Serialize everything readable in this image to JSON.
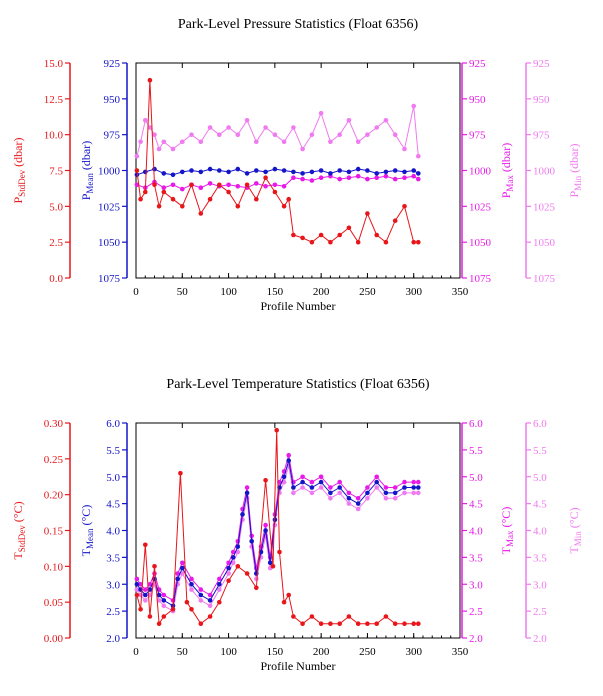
{
  "charts": [
    {
      "title": "Park-Level Pressure Statistics (Float 6356)",
      "xlabel": "Profile Number",
      "x_ticks": [
        "0",
        "50",
        "100",
        "150",
        "200",
        "250",
        "300",
        "350"
      ],
      "axes": {
        "std": {
          "label": "PStdDev (dbar)",
          "label_main": "P",
          "label_sub": "StdDev",
          "label_unit": " (dbar)",
          "ticks": [
            "0.0",
            "2.5",
            "5.0",
            "7.5",
            "10.0",
            "12.5",
            "15.0"
          ],
          "color": "#e8161a"
        },
        "mean": {
          "label": "PMean (dbar)",
          "label_main": "P",
          "label_sub": "Mean",
          "label_unit": " (dbar)",
          "ticks": [
            "925",
            "950",
            "975",
            "1000",
            "1025",
            "1050",
            "1075"
          ],
          "color": "#1414c8"
        },
        "max": {
          "label": "PMax (dbar)",
          "label_main": "P",
          "label_sub": "Max",
          "label_unit": " (dbar)",
          "ticks": [
            "925",
            "950",
            "975",
            "1000",
            "1025",
            "1050",
            "1075"
          ],
          "color": "#e81ae8"
        },
        "min": {
          "label": "PMin (dbar)",
          "label_main": "P",
          "label_sub": "Min",
          "label_unit": " (dbar)",
          "ticks": [
            "925",
            "950",
            "975",
            "1000",
            "1025",
            "1050",
            "1075"
          ],
          "color": "#f07af0"
        }
      }
    },
    {
      "title": "Park-Level Temperature Statistics (Float 6356)",
      "xlabel": "Profile Number",
      "x_ticks": [
        "0",
        "50",
        "100",
        "150",
        "200",
        "250",
        "300",
        "350"
      ],
      "axes": {
        "std": {
          "label": "TStdDev (°C)",
          "label_main": "T",
          "label_sub": "StdDev",
          "label_unit": " (°C)",
          "ticks": [
            "0.00",
            "0.05",
            "0.10",
            "0.15",
            "0.20",
            "0.25",
            "0.30"
          ],
          "color": "#e8161a"
        },
        "mean": {
          "label": "TMean (°C)",
          "label_main": "T",
          "label_sub": "Mean",
          "label_unit": " (°C)",
          "ticks": [
            "2.0",
            "2.5",
            "3.0",
            "3.5",
            "4.0",
            "4.5",
            "5.0",
            "5.5",
            "6.0"
          ],
          "color": "#1414c8"
        },
        "max": {
          "label": "TMax (°C)",
          "label_main": "T",
          "label_sub": "Max",
          "label_unit": " (°C)",
          "ticks": [
            "2.0",
            "2.5",
            "3.0",
            "3.5",
            "4.0",
            "4.5",
            "5.0",
            "5.5",
            "6.0"
          ],
          "color": "#e81ae8"
        },
        "min": {
          "label": "TMin (°C)",
          "label_main": "T",
          "label_sub": "Min",
          "label_unit": " (°C)",
          "ticks": [
            "2.0",
            "2.5",
            "3.0",
            "3.5",
            "4.0",
            "4.5",
            "5.0",
            "5.5",
            "6.0"
          ],
          "color": "#f07af0"
        }
      }
    }
  ],
  "chart_data": [
    {
      "type": "line",
      "title": "Park-Level Pressure Statistics (Float 6356)",
      "xlabel": "Profile Number",
      "xlim": [
        0,
        350
      ],
      "y_axes": {
        "std": {
          "label": "PStdDev (dbar)",
          "ylim": [
            0,
            15
          ]
        },
        "mean": {
          "label": "PMean (dbar)",
          "ylim": [
            1075,
            925
          ],
          "inverted": true
        },
        "max": {
          "label": "PMax (dbar)",
          "ylim": [
            1075,
            925
          ],
          "inverted": true
        },
        "min": {
          "label": "PMin (dbar)",
          "ylim": [
            1075,
            925
          ],
          "inverted": true
        }
      },
      "series": [
        {
          "name": "PStdDev",
          "axis": "std",
          "color": "#e8161a",
          "x": [
            1,
            5,
            10,
            15,
            20,
            25,
            30,
            40,
            50,
            60,
            70,
            80,
            90,
            100,
            110,
            120,
            130,
            140,
            150,
            160,
            165,
            170,
            180,
            190,
            200,
            210,
            220,
            230,
            240,
            250,
            260,
            270,
            280,
            290,
            300,
            305
          ],
          "y": [
            7.5,
            5.5,
            6.0,
            13.8,
            6.5,
            5.0,
            6.0,
            5.5,
            5.0,
            6.5,
            4.5,
            5.5,
            6.5,
            6.0,
            5.0,
            6.5,
            5.5,
            7.0,
            6.0,
            5.0,
            5.5,
            3.0,
            2.8,
            2.5,
            3.0,
            2.5,
            3.0,
            3.5,
            2.5,
            4.5,
            3.0,
            2.5,
            4.0,
            5.0,
            2.5,
            2.5
          ]
        },
        {
          "name": "PMean",
          "axis": "mean",
          "color": "#1414c8",
          "x": [
            1,
            10,
            20,
            30,
            40,
            50,
            60,
            70,
            80,
            90,
            100,
            110,
            120,
            130,
            140,
            150,
            160,
            170,
            180,
            190,
            200,
            210,
            220,
            230,
            240,
            250,
            260,
            270,
            280,
            290,
            300,
            305
          ],
          "y": [
            1003,
            1001,
            999,
            1002,
            1003,
            1001,
            1000,
            1001,
            999,
            1000,
            1001,
            999,
            1002,
            1000,
            1001,
            999,
            1000,
            1001,
            1002,
            1001,
            1000,
            1002,
            1000,
            1001,
            999,
            1000,
            1002,
            1001,
            1000,
            1001,
            1000,
            1002
          ]
        },
        {
          "name": "PMax",
          "axis": "max",
          "color": "#e81ae8",
          "x": [
            1,
            10,
            20,
            30,
            40,
            50,
            60,
            70,
            80,
            90,
            100,
            110,
            120,
            130,
            140,
            150,
            160,
            170,
            180,
            190,
            200,
            210,
            220,
            230,
            240,
            250,
            260,
            270,
            280,
            290,
            300,
            305
          ],
          "y": [
            1010,
            1012,
            1008,
            1012,
            1010,
            1013,
            1010,
            1012,
            1009,
            1011,
            1010,
            1011,
            1012,
            1009,
            1011,
            1010,
            1011,
            1005,
            1006,
            1007,
            1005,
            1004,
            1006,
            1005,
            1004,
            1006,
            1005,
            1004,
            1006,
            1005,
            1004,
            1006
          ]
        },
        {
          "name": "PMin",
          "axis": "min",
          "color": "#f07af0",
          "x": [
            1,
            5,
            10,
            15,
            20,
            25,
            30,
            40,
            50,
            60,
            70,
            80,
            90,
            100,
            110,
            120,
            130,
            140,
            150,
            160,
            170,
            180,
            190,
            200,
            210,
            220,
            230,
            240,
            250,
            260,
            270,
            280,
            290,
            300,
            305
          ],
          "y": [
            990,
            980,
            965,
            970,
            975,
            985,
            980,
            985,
            980,
            975,
            980,
            970,
            975,
            970,
            975,
            965,
            980,
            970,
            975,
            980,
            970,
            985,
            975,
            960,
            980,
            975,
            965,
            980,
            975,
            970,
            965,
            975,
            985,
            955,
            990
          ]
        }
      ]
    },
    {
      "type": "line",
      "title": "Park-Level Temperature Statistics (Float 6356)",
      "xlabel": "Profile Number",
      "xlim": [
        0,
        350
      ],
      "y_axes": {
        "std": {
          "label": "TStdDev (°C)",
          "ylim": [
            0,
            0.3
          ]
        },
        "mean": {
          "label": "TMean (°C)",
          "ylim": [
            2.0,
            6.0
          ]
        },
        "max": {
          "label": "TMax (°C)",
          "ylim": [
            2.0,
            6.0
          ]
        },
        "min": {
          "label": "TMin (°C)",
          "ylim": [
            2.0,
            6.0
          ]
        }
      },
      "series": [
        {
          "name": "TStdDev",
          "axis": "std",
          "color": "#e8161a",
          "x": [
            1,
            5,
            10,
            15,
            20,
            25,
            30,
            40,
            48,
            55,
            60,
            70,
            80,
            90,
            100,
            110,
            120,
            130,
            140,
            148,
            152,
            155,
            160,
            165,
            170,
            180,
            190,
            200,
            210,
            220,
            230,
            240,
            250,
            260,
            270,
            280,
            290,
            300,
            305
          ],
          "y": [
            0.06,
            0.04,
            0.13,
            0.03,
            0.1,
            0.02,
            0.03,
            0.04,
            0.23,
            0.05,
            0.04,
            0.02,
            0.03,
            0.05,
            0.08,
            0.1,
            0.09,
            0.07,
            0.22,
            0.1,
            0.29,
            0.12,
            0.05,
            0.06,
            0.03,
            0.02,
            0.03,
            0.02,
            0.02,
            0.02,
            0.03,
            0.02,
            0.02,
            0.02,
            0.03,
            0.02,
            0.02,
            0.02,
            0.02
          ]
        },
        {
          "name": "TMean",
          "axis": "mean",
          "color": "#1414c8",
          "x": [
            1,
            5,
            10,
            15,
            20,
            25,
            30,
            40,
            45,
            50,
            60,
            70,
            80,
            90,
            100,
            105,
            110,
            115,
            120,
            125,
            130,
            135,
            140,
            145,
            150,
            155,
            160,
            165,
            170,
            180,
            190,
            200,
            210,
            220,
            230,
            240,
            250,
            260,
            270,
            280,
            290,
            300,
            305
          ],
          "y": [
            3.0,
            2.9,
            2.8,
            2.9,
            3.1,
            2.8,
            2.7,
            2.6,
            3.1,
            3.3,
            3.0,
            2.8,
            2.7,
            3.0,
            3.3,
            3.5,
            3.7,
            4.3,
            4.7,
            3.8,
            3.2,
            3.6,
            4.0,
            3.4,
            4.2,
            4.8,
            5.0,
            5.3,
            4.8,
            4.9,
            4.8,
            4.9,
            4.7,
            4.8,
            4.6,
            4.5,
            4.7,
            4.9,
            4.7,
            4.7,
            4.8,
            4.8,
            4.8
          ]
        },
        {
          "name": "TMax",
          "axis": "max",
          "color": "#e81ae8",
          "x": [
            1,
            5,
            10,
            15,
            20,
            25,
            30,
            40,
            45,
            50,
            60,
            70,
            80,
            90,
            100,
            105,
            110,
            115,
            120,
            125,
            130,
            135,
            140,
            145,
            150,
            155,
            160,
            165,
            170,
            180,
            190,
            200,
            210,
            220,
            230,
            240,
            250,
            260,
            270,
            280,
            290,
            300,
            305
          ],
          "y": [
            3.1,
            3.0,
            2.9,
            3.0,
            3.2,
            2.9,
            2.8,
            2.7,
            3.2,
            3.4,
            3.1,
            2.9,
            2.8,
            3.1,
            3.4,
            3.6,
            3.8,
            4.4,
            4.8,
            3.9,
            3.3,
            3.7,
            4.1,
            3.5,
            4.3,
            4.9,
            5.1,
            5.4,
            4.9,
            5.0,
            4.9,
            5.0,
            4.8,
            4.9,
            4.7,
            4.6,
            4.8,
            5.0,
            4.8,
            4.8,
            4.9,
            4.9,
            4.9
          ]
        },
        {
          "name": "TMin",
          "axis": "min",
          "color": "#f07af0",
          "x": [
            1,
            5,
            10,
            15,
            20,
            25,
            30,
            40,
            45,
            50,
            60,
            70,
            80,
            90,
            100,
            105,
            110,
            115,
            120,
            125,
            130,
            135,
            140,
            145,
            150,
            155,
            160,
            165,
            170,
            180,
            190,
            200,
            210,
            220,
            230,
            240,
            250,
            260,
            270,
            280,
            290,
            300,
            305
          ],
          "y": [
            2.9,
            2.8,
            2.7,
            2.8,
            3.0,
            2.7,
            2.6,
            2.5,
            3.0,
            3.2,
            2.9,
            2.7,
            2.6,
            2.9,
            3.2,
            3.4,
            3.6,
            4.2,
            4.6,
            3.7,
            3.1,
            3.5,
            3.9,
            3.3,
            4.1,
            4.7,
            4.9,
            5.2,
            4.7,
            4.8,
            4.7,
            4.8,
            4.6,
            4.7,
            4.5,
            4.4,
            4.6,
            4.8,
            4.6,
            4.6,
            4.7,
            4.7,
            4.7
          ]
        }
      ]
    }
  ]
}
